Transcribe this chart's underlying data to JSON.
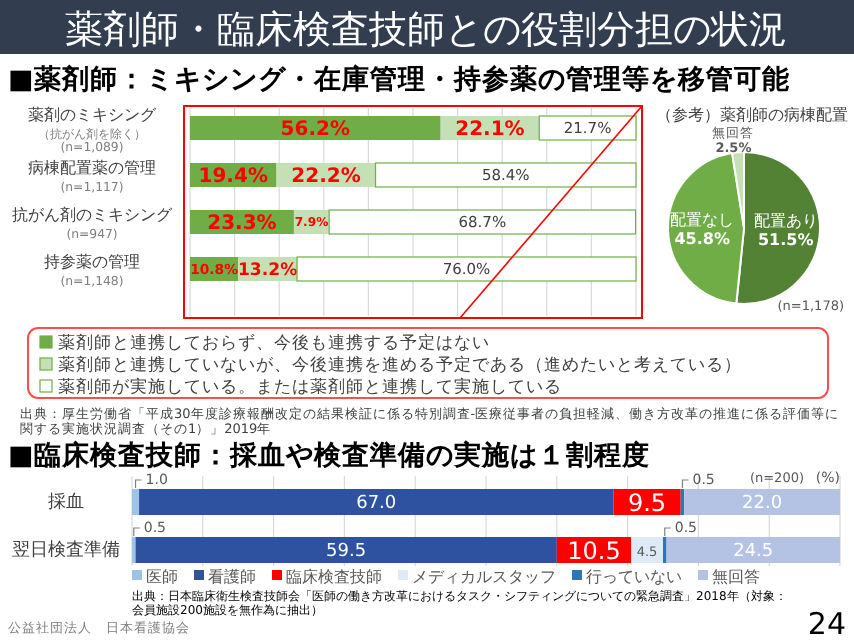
{
  "chart_data": [
    {
      "type": "bar",
      "orientation": "horizontal",
      "stacked": true,
      "title": "薬剤師・臨床検査技師との役割分担の状況",
      "subtitle": "■薬剤師：ミキシング・在庫管理・持参薬の管理等を移管可能",
      "categories": [
        "薬剤のミキシング（抗がん剤を除く）(n=1,089)",
        "病棟配置薬の管理(n=1,117)",
        "抗がん剤のミキシング(n=947)",
        "持参薬の管理(n=1,148)"
      ],
      "series": [
        {
          "name": "薬剤師と連携しておらず、今後も連携する予定はない",
          "color": "#70ad47",
          "values": [
            56.2,
            19.4,
            23.3,
            10.8
          ],
          "value_labels": [
            "56.2%",
            "19.4%",
            "23.3%",
            "10.8%"
          ]
        },
        {
          "name": "薬剤師と連携していないが、今後連携を進める予定である（進めたいと考えている）",
          "color": "#c5e0b4",
          "values": [
            22.1,
            22.2,
            7.9,
            13.2
          ],
          "value_labels": [
            "22.1%",
            "22.2%",
            "7.9%",
            "13.2%"
          ]
        },
        {
          "name": "薬剤師が実施している。または薬剤師と連携して実施している",
          "color": "#ffffff",
          "values": [
            21.7,
            58.4,
            68.7,
            76.0
          ],
          "value_labels": [
            "21.7%",
            "58.4%",
            "68.7%",
            "76.0%"
          ]
        }
      ],
      "xlim": [
        0,
        100
      ],
      "xticks": [
        {
          "value": 0,
          "label": null
        },
        {
          "value": 10,
          "label": null
        },
        {
          "value": 20,
          "label": null
        },
        {
          "value": 30,
          "label": null
        },
        {
          "value": 40,
          "label": null
        },
        {
          "value": 50,
          "label": null
        },
        {
          "value": 60,
          "label": null
        },
        {
          "value": 70,
          "label": null
        },
        {
          "value": 80,
          "label": null
        },
        {
          "value": 90,
          "label": null
        },
        {
          "value": 100,
          "label": null
        }
      ],
      "grid": "x",
      "tick_labels": "y",
      "legend": "bottom",
      "annotations": [
        "出典：厚生労働省「平成30年度診療報酬改定の結果検証に係る特別調査-医療従事者の負担軽減、働き方改革の推進に係る評価等に関する実施状況調査（その1）」2019年"
      ]
    },
    {
      "type": "pie",
      "title": "（参考）薬剤師の病棟配置",
      "categories": [
        "配置あり",
        "配置なし",
        "無回答"
      ],
      "values": [
        51.5,
        45.8,
        2.5
      ],
      "value_labels": [
        "51.5%",
        "45.8%",
        "2.5%"
      ],
      "colors": [
        "#548235",
        "#70ad47",
        "#c5e0b4"
      ],
      "annotations": [
        "(n=1,178)"
      ]
    },
    {
      "type": "bar",
      "orientation": "horizontal",
      "stacked": true,
      "title": "■臨床検査技師：採血や検査準備の実施は１割程度",
      "categories": [
        "採血",
        "翌日検査準備"
      ],
      "series": [
        {
          "name": "医師",
          "color": "#9dc3e6",
          "values": [
            1.0,
            0.5
          ],
          "value_labels": [
            "1.0",
            "0.5"
          ]
        },
        {
          "name": "看護師",
          "color": "#2f52a0",
          "values": [
            67.0,
            59.5
          ],
          "value_labels": [
            "67.0",
            "59.5"
          ]
        },
        {
          "name": "臨床検査技師",
          "color": "#ff0000",
          "values": [
            9.5,
            10.5
          ],
          "value_labels": [
            "9.5",
            "10.5"
          ]
        },
        {
          "name": "メディカルスタッフ",
          "color": "#deebf7",
          "values": [
            null,
            4.5
          ],
          "value_labels": [
            null,
            "4.5"
          ]
        },
        {
          "name": "行っていない",
          "color": "#2e75b6",
          "values": [
            0.5,
            0.5
          ],
          "value_labels": [
            "0.5",
            "0.5"
          ]
        },
        {
          "name": "無回答",
          "color": "#b4c3e4",
          "values": [
            22.0,
            24.5
          ],
          "value_labels": [
            "22.0",
            "24.5"
          ]
        }
      ],
      "xlim": [
        0,
        100
      ],
      "xticks": [
        {
          "value": 0,
          "label": null
        },
        {
          "value": 10,
          "label": null
        },
        {
          "value": 20,
          "label": null
        },
        {
          "value": 30,
          "label": null
        },
        {
          "value": 40,
          "label": null
        },
        {
          "value": 50,
          "label": null
        },
        {
          "value": 60,
          "label": null
        },
        {
          "value": 70,
          "label": null
        },
        {
          "value": 80,
          "label": null
        },
        {
          "value": 90,
          "label": null
        },
        {
          "value": 100,
          "label": null
        }
      ],
      "grid": "x",
      "tick_labels": "y",
      "legend": "bottom",
      "annotations": [
        "(n=200)",
        "(%)",
        "出典：日本臨床衛生検査技師会「医師の働き方改革におけるタスク・シフティングについての緊急調査」2018年（対象：会員施設200施設を無作為に抽出）",
        "公益社団法人　日本看護協会",
        "24"
      ]
    }
  ]
}
